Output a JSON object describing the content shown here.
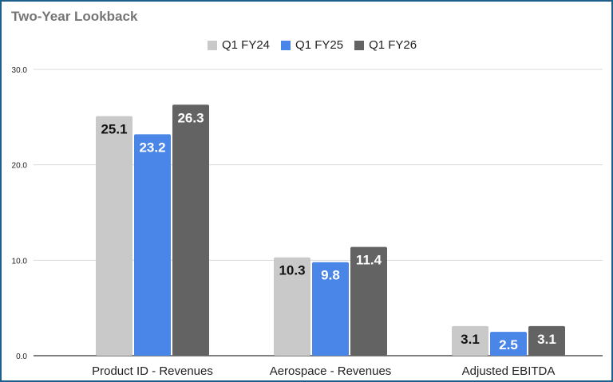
{
  "chart_data": {
    "type": "bar",
    "title": "Two-Year Lookback",
    "categories": [
      "Product ID - Revenues",
      "Aerospace - Revenues",
      "Adjusted EBITDA"
    ],
    "series": [
      {
        "name": "Q1 FY24",
        "values": [
          25.1,
          10.3,
          3.1
        ],
        "color": "#c9c9c9",
        "label_color": "#111111"
      },
      {
        "name": "Q1 FY25",
        "values": [
          23.2,
          9.8,
          2.5
        ],
        "color": "#4a86e8",
        "label_color": "#ffffff"
      },
      {
        "name": "Q1 FY26",
        "values": [
          26.3,
          11.4,
          3.1
        ],
        "color": "#636363",
        "label_color": "#ffffff"
      }
    ],
    "ylim": [
      0,
      30
    ],
    "yticks": [
      "0.0",
      "10.0",
      "20.0",
      "30.0"
    ],
    "grid": true,
    "legend": "top-center",
    "border_color": "#1f5f8b"
  }
}
